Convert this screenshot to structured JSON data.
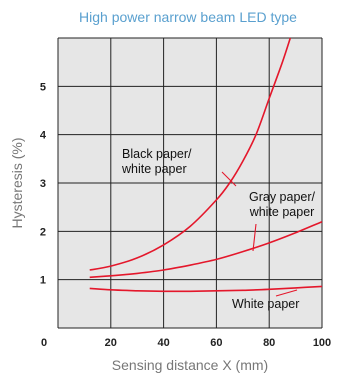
{
  "chart_data": {
    "type": "line",
    "title": "High power narrow beam LED type",
    "xlabel": "Sensing distance X (mm)",
    "ylabel": "Hysteresis (%)",
    "xlim": [
      0,
      100
    ],
    "ylim": [
      0,
      6
    ],
    "x_ticks": [
      "0",
      "20",
      "40",
      "60",
      "80",
      "100"
    ],
    "y_ticks": [
      "1",
      "2",
      "3",
      "4",
      "5"
    ],
    "grid": true,
    "series": [
      {
        "name": "Black paper/ white paper",
        "label_lines": [
          "Black paper/",
          "white paper"
        ],
        "x": [
          12,
          20,
          30,
          40,
          50,
          60,
          65,
          70,
          75,
          80,
          85,
          88
        ],
        "y": [
          1.2,
          1.28,
          1.45,
          1.72,
          2.1,
          2.65,
          3.0,
          3.45,
          4.0,
          4.75,
          5.5,
          6.0
        ]
      },
      {
        "name": "Gray paper/ white paper",
        "label_lines": [
          "Gray paper/",
          "white paper"
        ],
        "x": [
          12,
          20,
          30,
          40,
          50,
          60,
          70,
          80,
          90,
          100
        ],
        "y": [
          1.05,
          1.08,
          1.13,
          1.2,
          1.3,
          1.42,
          1.58,
          1.76,
          1.97,
          2.2
        ]
      },
      {
        "name": "White paper",
        "label_lines": [
          "White paper"
        ],
        "x": [
          12,
          20,
          30,
          40,
          50,
          60,
          70,
          80,
          90,
          100
        ],
        "y": [
          0.82,
          0.79,
          0.77,
          0.76,
          0.76,
          0.77,
          0.78,
          0.8,
          0.83,
          0.86
        ]
      }
    ]
  }
}
